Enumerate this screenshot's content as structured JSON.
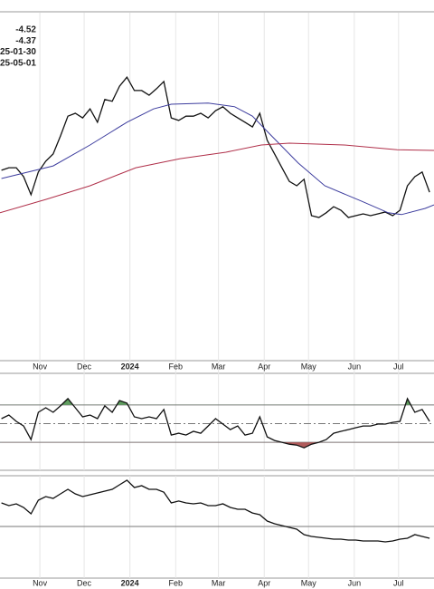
{
  "chart_data": [
    {
      "type": "line",
      "annotations": [
        "-4.52",
        "-4.37",
        "25-01-30",
        "25-05-01"
      ],
      "xlim": [
        4,
        298
      ],
      "ylim": [
        0,
        100
      ],
      "xticks": [
        {
          "value": 31,
          "label": "Nov"
        },
        {
          "value": 61,
          "label": "Dec"
        },
        {
          "value": 92,
          "label": "2024"
        },
        {
          "value": 123,
          "label": "Feb"
        },
        {
          "value": 152,
          "label": "Mar"
        },
        {
          "value": 183,
          "label": "Apr"
        },
        {
          "value": 213,
          "label": "May"
        },
        {
          "value": 244,
          "label": "Jun"
        },
        {
          "value": 274,
          "label": "Jul"
        }
      ],
      "grid": true,
      "x": [
        5,
        10,
        15,
        20,
        25,
        30,
        35,
        40,
        45,
        50,
        55,
        60,
        65,
        70,
        75,
        80,
        85,
        90,
        95,
        100,
        105,
        110,
        115,
        120,
        125,
        130,
        135,
        140,
        145,
        150,
        155,
        160,
        165,
        170,
        175,
        180,
        185,
        190,
        195,
        200,
        205,
        210,
        215,
        220,
        225,
        230,
        235,
        240,
        245,
        250,
        255,
        260,
        265,
        270,
        275,
        280,
        285,
        290,
        295
      ],
      "series": [
        {
          "color": "#111111",
          "values": [
            52.8,
            53.5,
            53.5,
            51.0,
            46.0,
            52.3,
            55.3,
            57.3,
            62.3,
            67.8,
            68.6,
            67.3,
            69.8,
            66.1,
            72.4,
            71.9,
            76.1,
            78.6,
            74.9,
            74.9,
            73.6,
            75.4,
            77.4,
            67.3,
            66.6,
            67.8,
            67.8,
            68.6,
            67.3,
            69.3,
            70.4,
            68.6,
            67.3,
            66.1,
            64.8,
            68.6,
            61.1,
            57.3,
            53.5,
            49.7,
            48.5,
            50.3,
            40.2,
            39.7,
            41.0,
            42.7,
            41.7,
            39.7,
            40.2,
            40.7,
            40.2,
            40.7,
            41.2,
            40.2,
            41.7,
            48.5,
            51.0,
            52.3,
            46.7
          ]
        },
        {
          "color": "#3d3d9e",
          "x": [
            5,
            40,
            65,
            90,
            108,
            120,
            145,
            163,
            175,
            188,
            206,
            224,
            249,
            267,
            276,
            292,
            298
          ],
          "values": [
            50.5,
            54.0,
            59.8,
            66.1,
            69.8,
            71.1,
            71.4,
            70.4,
            67.8,
            62.3,
            54.8,
            48.5,
            44.2,
            41.0,
            40.5,
            42.2,
            43.2
          ]
        },
        {
          "color": "#b0304a",
          "x": [
            4,
            35,
            65,
            96,
            126,
            157,
            181,
            200,
            237,
            273,
            298
          ],
          "values": [
            41.0,
            44.7,
            48.5,
            53.5,
            56.0,
            57.8,
            59.8,
            60.3,
            59.8,
            58.5,
            58.3
          ]
        }
      ]
    },
    {
      "type": "line",
      "xlim": [
        4,
        298
      ],
      "ylim": [
        0,
        100
      ],
      "levels": [
        30,
        50,
        70
      ],
      "overbought_color": "#5f9e5f",
      "oversold_color": "#b05a5a",
      "x": [
        5,
        10,
        15,
        20,
        25,
        30,
        35,
        40,
        45,
        50,
        55,
        60,
        65,
        70,
        75,
        80,
        85,
        90,
        95,
        100,
        105,
        110,
        115,
        120,
        125,
        130,
        135,
        140,
        145,
        150,
        155,
        160,
        165,
        170,
        175,
        180,
        185,
        190,
        195,
        200,
        205,
        210,
        215,
        220,
        225,
        230,
        235,
        240,
        245,
        250,
        255,
        260,
        265,
        270,
        275,
        280,
        285,
        290,
        295
      ],
      "series": [
        {
          "color": "#111111",
          "values": [
            55.3,
            59.2,
            52.4,
            47.5,
            32.9,
            62.1,
            67.0,
            62.1,
            69.0,
            76.8,
            67.0,
            57.3,
            59.2,
            55.3,
            69.0,
            62.1,
            74.8,
            71.9,
            57.3,
            55.3,
            57.3,
            55.3,
            65.1,
            37.8,
            39.7,
            37.8,
            41.7,
            39.7,
            47.5,
            55.3,
            49.5,
            43.6,
            47.5,
            37.8,
            39.7,
            57.3,
            35.8,
            31.9,
            30.0,
            28.0,
            27.0,
            24.1,
            28.0,
            30.0,
            32.9,
            39.7,
            41.7,
            43.6,
            45.6,
            47.5,
            47.5,
            49.5,
            49.5,
            51.4,
            52.4,
            76.8,
            62.1,
            65.1,
            52.4
          ]
        }
      ]
    },
    {
      "type": "line",
      "xlim": [
        4,
        298
      ],
      "ylim": [
        0,
        100
      ],
      "levels": [
        51.3
      ],
      "xticks": [
        {
          "value": 31,
          "label": "Nov"
        },
        {
          "value": 61,
          "label": "Dec"
        },
        {
          "value": 92,
          "label": "2024"
        },
        {
          "value": 123,
          "label": "Feb"
        },
        {
          "value": 152,
          "label": "Mar"
        },
        {
          "value": 183,
          "label": "Apr"
        },
        {
          "value": 213,
          "label": "May"
        },
        {
          "value": 244,
          "label": "Jun"
        },
        {
          "value": 274,
          "label": "Jul"
        }
      ],
      "grid": true,
      "x": [
        5,
        10,
        15,
        20,
        25,
        30,
        35,
        40,
        45,
        50,
        55,
        60,
        65,
        70,
        75,
        80,
        85,
        90,
        95,
        100,
        105,
        110,
        115,
        120,
        125,
        130,
        135,
        140,
        145,
        150,
        155,
        160,
        165,
        170,
        175,
        180,
        185,
        190,
        195,
        200,
        205,
        210,
        215,
        220,
        225,
        230,
        235,
        240,
        245,
        250,
        255,
        260,
        265,
        270,
        275,
        280,
        285,
        290,
        295
      ],
      "series": [
        {
          "color": "#111111",
          "values": [
            73.9,
            71.3,
            73.0,
            69.6,
            63.5,
            76.5,
            80.0,
            78.3,
            82.6,
            87.0,
            82.6,
            80.0,
            81.7,
            83.5,
            85.2,
            87.0,
            91.3,
            95.7,
            88.7,
            90.4,
            87.0,
            87.0,
            84.3,
            73.9,
            75.7,
            73.9,
            73.0,
            73.9,
            71.3,
            71.3,
            73.0,
            69.6,
            67.8,
            67.8,
            64.3,
            62.6,
            56.5,
            53.9,
            52.2,
            50.4,
            48.7,
            43.5,
            41.7,
            40.9,
            40.0,
            39.1,
            39.1,
            38.3,
            38.3,
            37.4,
            37.4,
            37.4,
            36.5,
            37.4,
            39.1,
            40.0,
            43.5,
            41.7,
            40.0
          ]
        }
      ]
    }
  ]
}
